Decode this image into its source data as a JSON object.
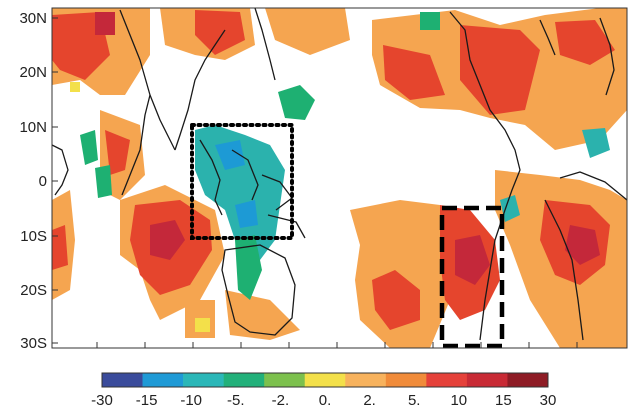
{
  "map": {
    "lat_labels": [
      "30N",
      "20N",
      "10N",
      "0",
      "10S",
      "20S",
      "30S"
    ],
    "colorbar": {
      "tick_labels": [
        "-30",
        "-15",
        "-10",
        "-5.",
        "-2.",
        "0.",
        "2.",
        "5.",
        "10",
        "15",
        "30"
      ],
      "colors": [
        "#3a4b9b",
        "#1f9ad6",
        "#2bb7b8",
        "#22b07a",
        "#7cc04d",
        "#f3e04a",
        "#f7b25d",
        "#f08b3a",
        "#e5413a",
        "#c82a35",
        "#8e1c25"
      ]
    },
    "palette": {
      "orange": "#f5a550",
      "red": "#e5452d",
      "darkred": "#c4283a",
      "teal": "#2bb2ad",
      "green": "#1eb072",
      "blue": "#1d9ad5"
    },
    "boxes": [
      {
        "style": "dotted",
        "lon_range": [
          95,
          125
        ],
        "lat_range": [
          -10,
          10
        ]
      },
      {
        "style": "dashed",
        "lon_range": [
          250,
          265
        ],
        "lat_range": [
          -30,
          -5
        ]
      }
    ]
  }
}
